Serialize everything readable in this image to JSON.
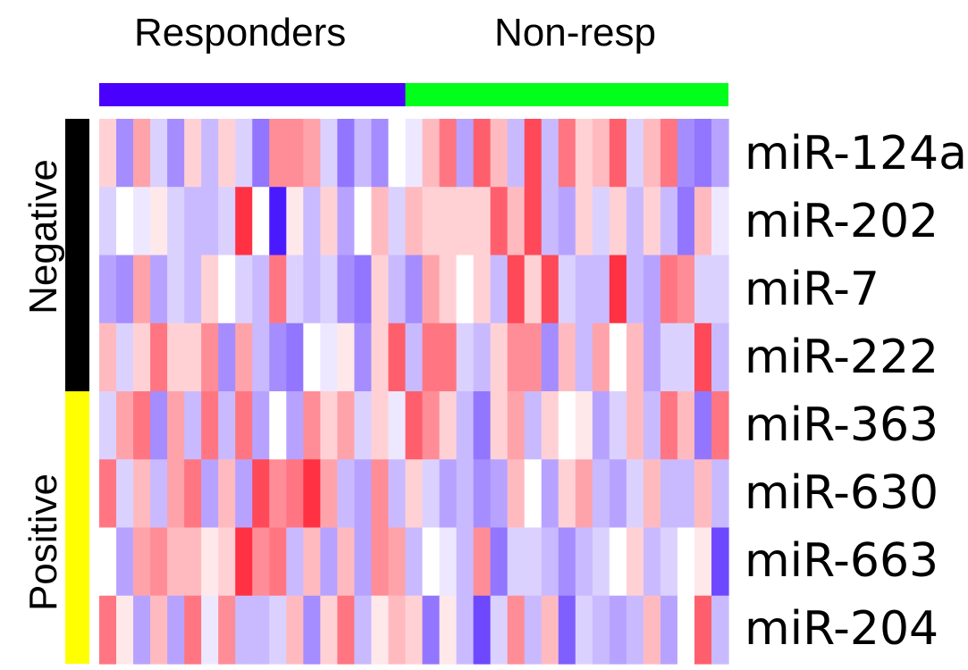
{
  "chart_data": {
    "type": "heatmap",
    "title": "",
    "column_groups": [
      {
        "label": "Responders",
        "count": 18,
        "color": "#4a00ff"
      },
      {
        "label": "Non-resp",
        "count": 19,
        "color": "#00ff1a"
      }
    ],
    "row_groups": [
      {
        "label": "Negative",
        "rows": 4,
        "color": "#000000"
      },
      {
        "label": "Positive",
        "rows": 4,
        "color": "#ffff00"
      }
    ],
    "rows": [
      "miR-124a",
      "miR-202",
      "miR-7",
      "miR-222",
      "miR-363",
      "miR-630",
      "miR-663",
      "miR-204"
    ],
    "color_scale": {
      "low": "#4a1aff",
      "mid": "#ffffff",
      "high": "#ff1a2e",
      "range": [
        -1,
        1
      ]
    },
    "values": [
      [
        0.2,
        -0.5,
        0.4,
        -0.2,
        -0.5,
        0.2,
        -0.3,
        0.2,
        -0.2,
        -0.6,
        0.5,
        0.5,
        0.4,
        -0.2,
        -0.6,
        -0.3,
        -0.5,
        0.0,
        -0.1,
        0.3,
        0.6,
        -0.4,
        0.7,
        0.3,
        -0.3,
        0.8,
        -0.3,
        0.6,
        0.2,
        0.3,
        0.7,
        -0.2,
        0.3,
        0.6,
        -0.5,
        -0.6,
        -0.4
      ],
      [
        -0.2,
        0.0,
        -0.1,
        0.1,
        -0.2,
        -0.3,
        -0.3,
        -0.2,
        0.9,
        0.0,
        -1.0,
        0.1,
        -0.3,
        0.2,
        -0.4,
        0.0,
        0.3,
        -0.2,
        0.3,
        0.2,
        0.2,
        0.2,
        0.2,
        0.7,
        0.3,
        0.8,
        -0.3,
        -0.4,
        0.2,
        -0.2,
        0.2,
        -0.3,
        0.2,
        -0.3,
        -0.6,
        0.3,
        -0.1
      ],
      [
        -0.4,
        -0.5,
        0.4,
        -0.4,
        -0.2,
        -0.3,
        0.2,
        0.0,
        -0.2,
        -0.3,
        0.6,
        -0.2,
        -0.3,
        -0.2,
        -0.5,
        -0.6,
        0.2,
        -0.3,
        -0.5,
        0.4,
        0.2,
        0.0,
        0.2,
        -0.3,
        0.8,
        0.2,
        0.8,
        -0.2,
        -0.3,
        -0.3,
        0.9,
        -0.3,
        -0.4,
        0.6,
        0.5,
        -0.2,
        -0.2
      ],
      [
        0.3,
        -0.2,
        0.2,
        0.6,
        0.2,
        0.2,
        0.5,
        -0.5,
        0.4,
        -0.3,
        -0.5,
        -0.6,
        0.0,
        -0.1,
        0.1,
        -0.5,
        0.2,
        0.7,
        -0.3,
        0.6,
        0.6,
        -0.2,
        -0.3,
        0.2,
        0.5,
        0.5,
        -0.5,
        0.3,
        -0.3,
        0.4,
        0.0,
        0.3,
        -0.4,
        -0.2,
        -0.2,
        0.8,
        -0.3
      ],
      [
        -0.2,
        0.4,
        0.6,
        -0.5,
        0.4,
        -0.3,
        0.6,
        -0.3,
        0.6,
        -0.4,
        0.0,
        -0.4,
        0.5,
        0.2,
        0.4,
        -0.2,
        0.2,
        -0.1,
        0.7,
        0.5,
        0.2,
        -0.3,
        -0.6,
        0.2,
        0.4,
        -0.3,
        0.2,
        0.0,
        0.1,
        -0.4,
        -0.2,
        0.3,
        -0.3,
        0.6,
        0.3,
        -0.6,
        0.6
      ],
      [
        0.6,
        -0.2,
        0.3,
        -0.3,
        0.4,
        0.6,
        -0.4,
        0.3,
        -0.4,
        0.8,
        0.5,
        0.6,
        0.9,
        0.4,
        -0.3,
        -0.4,
        0.5,
        -0.3,
        0.2,
        -0.2,
        -0.4,
        -0.3,
        -0.5,
        -0.4,
        0.3,
        0.0,
        -0.4,
        0.2,
        0.4,
        -0.3,
        -0.4,
        -0.2,
        0.3,
        -0.3,
        -0.3,
        0.3,
        -0.3
      ],
      [
        0.0,
        -0.4,
        0.4,
        0.5,
        0.3,
        0.3,
        0.1,
        0.2,
        0.9,
        0.5,
        0.6,
        -0.3,
        0.3,
        -0.4,
        0.3,
        -0.4,
        0.5,
        0.4,
        -0.3,
        0.0,
        -0.1,
        -0.3,
        0.5,
        -0.6,
        -0.2,
        -0.2,
        -0.3,
        -0.5,
        -0.3,
        -0.2,
        0.0,
        0.2,
        -0.3,
        -0.2,
        0.0,
        0.1,
        -0.8
      ],
      [
        0.6,
        0.1,
        -0.4,
        0.3,
        -0.4,
        0.6,
        -0.1,
        0.5,
        -0.3,
        -0.3,
        -0.2,
        0.3,
        -0.5,
        0.2,
        0.6,
        -0.3,
        0.1,
        0.3,
        0.2,
        -0.6,
        0.1,
        -0.3,
        -0.8,
        -0.2,
        0.5,
        -0.3,
        0.3,
        -0.7,
        -0.2,
        -0.3,
        -0.4,
        -0.3,
        0.3,
        -0.4,
        0.0,
        0.7,
        -0.3
      ]
    ]
  }
}
